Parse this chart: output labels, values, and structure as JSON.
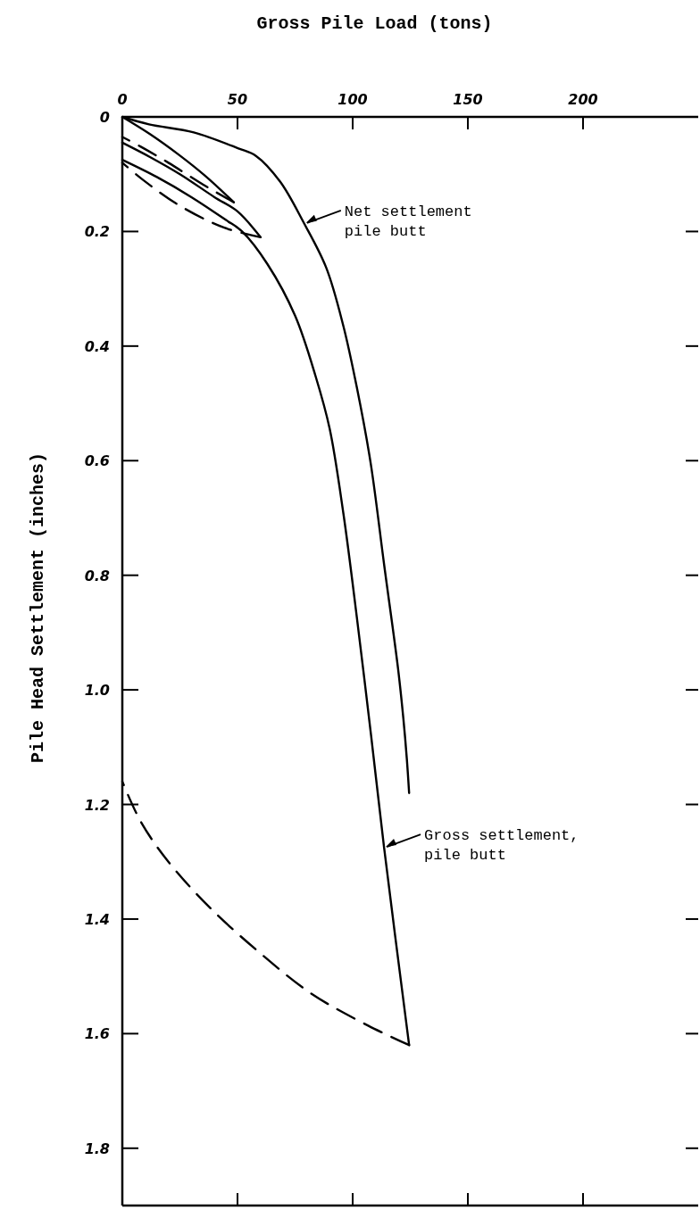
{
  "chart_data": {
    "type": "line",
    "xlabel": "Gross Pile Load (tons)",
    "ylabel": "Pile Head Settlement (inches)",
    "xlim": [
      0,
      250
    ],
    "ylim": [
      1.9,
      0
    ],
    "xticks": [
      0,
      50,
      100,
      150,
      200
    ],
    "yticks": [
      0,
      0.2,
      0.4,
      0.6,
      0.8,
      {
        "value": 1,
        "label": "1.0"
      },
      1.2,
      1.4,
      1.6,
      1.8
    ],
    "series": [
      {
        "color": "#000000",
        "line_style": "solid",
        "x": [
          0,
          11.6,
          31,
          50.4,
          58,
          68.5,
          78.8,
          88.5,
          95.9,
          101.8,
          107.8,
          113.7,
          119.7,
          122,
          123.5,
          124.5
        ],
        "values": [
          0,
          0.013,
          0.027,
          0.055,
          0.068,
          0.113,
          0.185,
          0.263,
          0.364,
          0.472,
          0.604,
          0.783,
          0.963,
          1.05,
          1.12,
          1.18
        ]
      },
      {
        "color": "#000000",
        "line_style": "solid",
        "x": [
          0,
          12,
          24.5,
          36,
          48.4
        ],
        "values": [
          0,
          0.03,
          0.066,
          0.103,
          0.149
        ]
      },
      {
        "color": "#000000",
        "line_style": "dashed",
        "x": [
          48.4,
          35,
          20,
          8,
          0
        ],
        "values": [
          0.149,
          0.118,
          0.08,
          0.052,
          0.035
        ]
      },
      {
        "color": "#000000",
        "line_style": "solid",
        "x": [
          0,
          12,
          25,
          40,
          50,
          60
        ],
        "values": [
          0.045,
          0.07,
          0.1,
          0.14,
          0.165,
          0.21
        ]
      },
      {
        "color": "#000000",
        "line_style": "dashed",
        "x": [
          60,
          44,
          24.5,
          9,
          0
        ],
        "values": [
          0.21,
          0.193,
          0.154,
          0.11,
          0.08
        ]
      },
      {
        "color": "#000000",
        "line_style": "solid",
        "x": [
          0,
          15,
          30,
          45,
          52,
          63,
          75,
          84,
          90,
          96,
          101.8,
          108,
          113.6,
          124.5
        ],
        "values": [
          0.075,
          0.105,
          0.14,
          0.18,
          0.2,
          0.257,
          0.347,
          0.454,
          0.544,
          0.693,
          0.873,
          1.08,
          1.274,
          1.62
        ]
      },
      {
        "color": "#000000",
        "line_style": "dashed",
        "x": [
          124.5,
          106.7,
          82,
          60,
          38,
          20,
          8,
          0
        ],
        "values": [
          1.62,
          1.586,
          1.53,
          1.46,
          1.38,
          1.3,
          1.23,
          1.16
        ]
      }
    ],
    "annotations": [
      {
        "text": "Net settlement pile butt",
        "x": 79,
        "y": 0.185
      },
      {
        "text": "Gross settlement, pile butt",
        "x": 113.6,
        "y": 1.274
      }
    ]
  }
}
